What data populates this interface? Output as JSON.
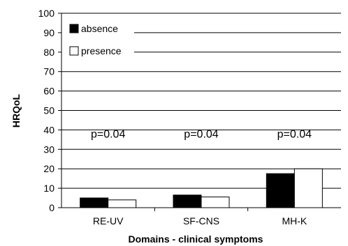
{
  "chart_data": {
    "type": "bar",
    "title": "",
    "xlabel": "Domains - clinical symptoms",
    "ylabel": "HRQoL",
    "ylim": [
      0,
      100
    ],
    "yticks": [
      0,
      10,
      20,
      30,
      40,
      50,
      60,
      70,
      80,
      90,
      100
    ],
    "grid": true,
    "legend_placement": "top-left",
    "categories": [
      "RE-UV",
      "SF-CNS",
      "MH-K"
    ],
    "series": [
      {
        "name": "absence",
        "values": [
          5,
          6.5,
          17.5
        ],
        "color": "#000000"
      },
      {
        "name": "presence",
        "values": [
          4,
          5.5,
          20
        ],
        "color": "#ffffff"
      }
    ],
    "annotations": [
      {
        "category": "RE-UV",
        "text": "p=0.04",
        "y": 36
      },
      {
        "category": "SF-CNS",
        "text": "p=0.04",
        "y": 36
      },
      {
        "category": "MH-K",
        "text": "p=0.04",
        "y": 36
      }
    ]
  }
}
